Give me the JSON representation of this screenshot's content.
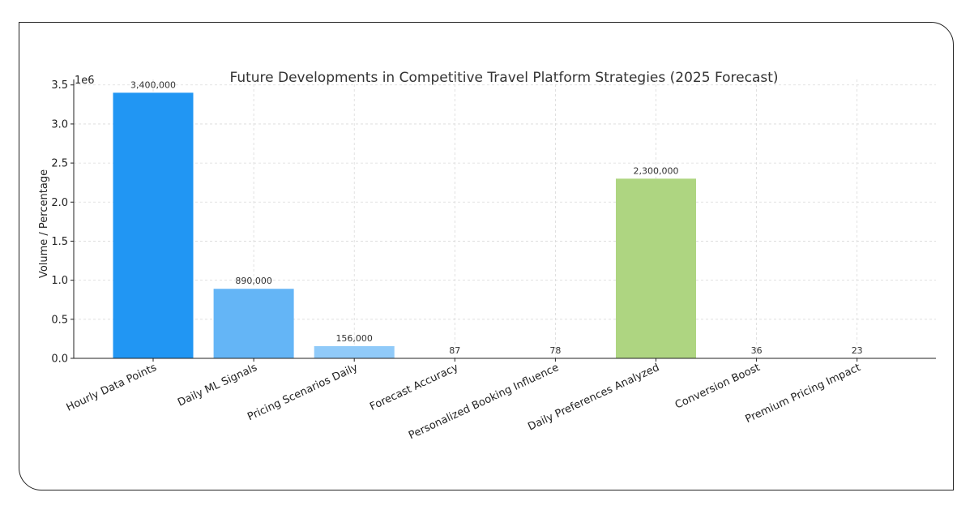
{
  "chart_data": {
    "type": "bar",
    "title": "Future Developments in Competitive Travel Platform Strategies (2025 Forecast)",
    "xlabel": "",
    "ylabel": "Volume / Percentage",
    "y_offset_label": "1e6",
    "categories": [
      "Hourly Data Points",
      "Daily ML Signals",
      "Pricing Scenarios Daily",
      "Forecast Accuracy",
      "Personalized Booking Influence",
      "Daily Preferences Analyzed",
      "Conversion Boost",
      "Premium Pricing Impact"
    ],
    "values": [
      3400000,
      890000,
      156000,
      87,
      78,
      2300000,
      36,
      23
    ],
    "value_labels": [
      "3,400,000",
      "890,000",
      "156,000",
      "87",
      "78",
      "2,300,000",
      "36",
      "23"
    ],
    "colors": [
      "#2196F3",
      "#64B5F6",
      "#90CAF9",
      "#BBDEFB",
      "#E3F2FD",
      "#AED581",
      "#C5E1A5",
      "#DCEDC8"
    ],
    "y_ticks": [
      0,
      500000,
      1000000,
      1500000,
      2000000,
      2500000,
      3000000,
      3500000
    ],
    "y_tick_labels": [
      "0.0",
      "0.5",
      "1.0",
      "1.5",
      "2.0",
      "2.5",
      "3.0",
      "3.5"
    ],
    "ylim": [
      0,
      3570000
    ],
    "grid": true,
    "grid_style": "dashed"
  }
}
